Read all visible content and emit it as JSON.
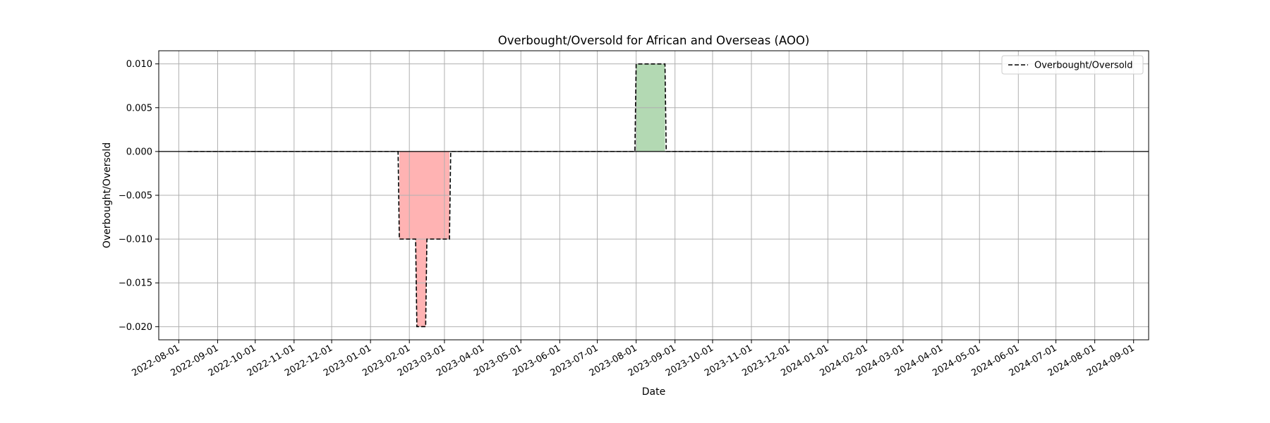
{
  "chart_data": {
    "type": "line",
    "title": "Overbought/Oversold for African and Overseas (AOO)",
    "xlabel": "Date",
    "ylabel": "Overbought/Oversold",
    "x_ticks": [
      "2022-08-01",
      "2022-09-01",
      "2022-10-01",
      "2022-11-01",
      "2022-12-01",
      "2023-01-01",
      "2023-02-01",
      "2023-03-01",
      "2023-04-01",
      "2023-05-01",
      "2023-06-01",
      "2023-07-01",
      "2023-08-01",
      "2023-09-01",
      "2023-10-01",
      "2023-11-01",
      "2023-12-01",
      "2024-01-01",
      "2024-02-01",
      "2024-03-01",
      "2024-04-01",
      "2024-05-01",
      "2024-06-01",
      "2024-07-01",
      "2024-08-01",
      "2024-09-01"
    ],
    "y_ticks": [
      "0.010",
      "0.005",
      "0.000",
      "−0.005",
      "−0.010",
      "−0.015",
      "−0.020"
    ],
    "y_tick_values": [
      0.01,
      0.005,
      0.0,
      -0.005,
      -0.01,
      -0.015,
      -0.02
    ],
    "ylim": [
      -0.0215,
      0.0115
    ],
    "xlim": [
      "2022-07-16",
      "2024-09-13"
    ],
    "grid": true,
    "legend_position": "upper right",
    "series": [
      {
        "name": "Overbought/Oversold",
        "style": "dashed",
        "color": "#000000",
        "points": [
          [
            "2022-08-08",
            0.0
          ],
          [
            "2023-01-23",
            0.0
          ],
          [
            "2023-01-24",
            -0.01
          ],
          [
            "2023-02-06",
            -0.01
          ],
          [
            "2023-02-07",
            -0.02
          ],
          [
            "2023-02-14",
            -0.02
          ],
          [
            "2023-02-15",
            -0.01
          ],
          [
            "2023-03-05",
            -0.01
          ],
          [
            "2023-03-06",
            0.0
          ],
          [
            "2023-07-31",
            0.0
          ],
          [
            "2023-08-01",
            0.01
          ],
          [
            "2023-08-24",
            0.01
          ],
          [
            "2023-08-25",
            0.0
          ],
          [
            "2024-08-09",
            0.0
          ]
        ]
      }
    ],
    "zero_line": 0.0,
    "fill_positive_color": "#b3d9b3",
    "fill_negative_color": "#ffb3b3"
  }
}
